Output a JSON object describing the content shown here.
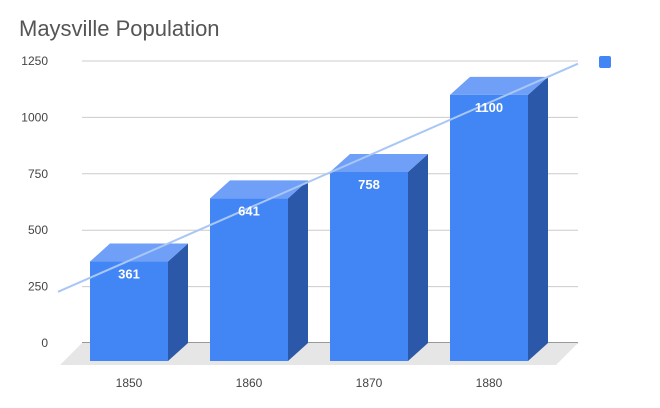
{
  "chart_data": {
    "type": "bar",
    "title": "Maysville Population",
    "categories": [
      "1850",
      "1860",
      "1870",
      "1880"
    ],
    "series": [
      {
        "values": [
          361,
          641,
          758,
          1100
        ],
        "color": "#4285f4"
      }
    ],
    "data_labels": [
      "361",
      "641",
      "758",
      "1100"
    ],
    "y_ticks": [
      0,
      250,
      500,
      750,
      1000,
      1250
    ],
    "ylim": [
      0,
      1250
    ],
    "trendline": {
      "type": "linear",
      "color": "#a9c7f5"
    },
    "legend": {
      "position": "top-right",
      "color": "#4285f4"
    },
    "grid": true,
    "style": "3d"
  }
}
